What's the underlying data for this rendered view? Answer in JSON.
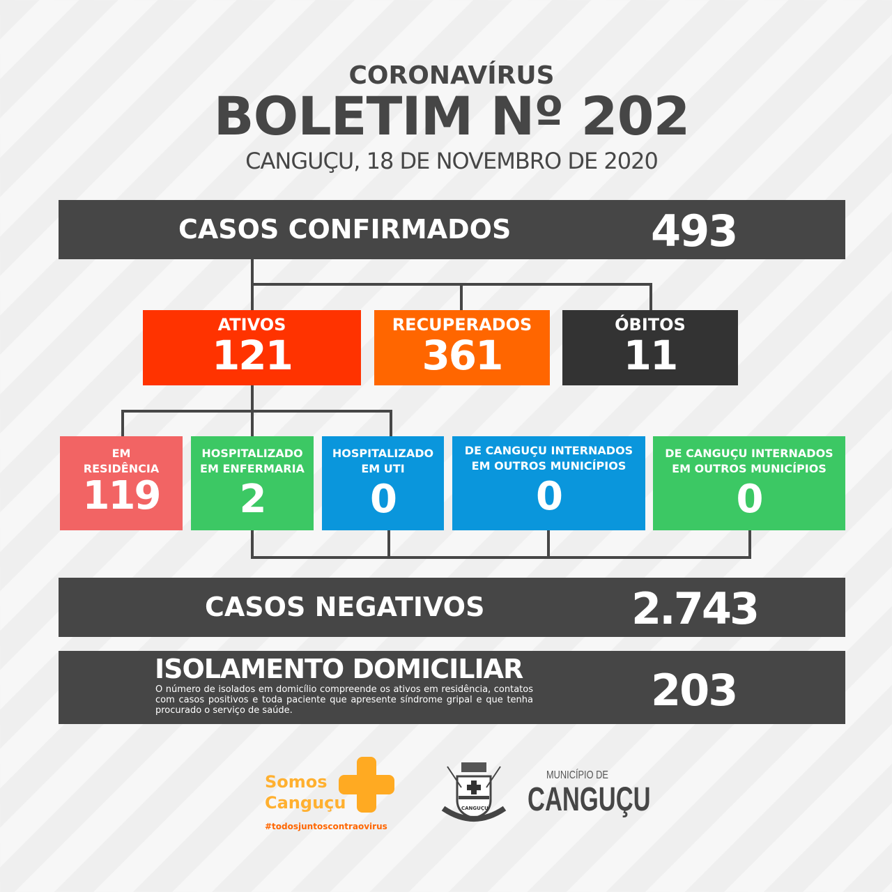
{
  "header": {
    "kicker": "CORONAVÍRUS",
    "title": "BOLETIM Nº 202",
    "date": "CANGUÇU, 18 DE NOVEMBRO DE 2020"
  },
  "confirmados": {
    "label": "CASOS CONFIRMADOS",
    "value": "493"
  },
  "status": [
    {
      "label": "ATIVOS",
      "value": "121",
      "color": "#ff3300"
    },
    {
      "label": "RECUPERADOS",
      "value": "361",
      "color": "#ff6600"
    },
    {
      "label": "ÓBITOS",
      "value": "11",
      "color": "#333333"
    }
  ],
  "ativos_detalhe": [
    {
      "label": "EM RESIDÊNCIA",
      "value": "119",
      "color": "#f26464"
    },
    {
      "label": "HOSPITALIZADO EM ENFERMARIA",
      "value": "2",
      "color": "#3cc864"
    },
    {
      "label": "HOSPITALIZADO EM UTI",
      "value": "0",
      "color": "#0a96dc"
    },
    {
      "label": "DE CANGUÇU INTERNADOS EM OUTROS MUNICÍPIOS",
      "value": "0",
      "color": "#0a96dc"
    },
    {
      "label": "DE CANGUÇU INTERNADOS EM OUTROS MUNICÍPIOS",
      "value": "0",
      "color": "#3cc864"
    }
  ],
  "negativos": {
    "label": "CASOS NEGATIVOS",
    "value": "2.743"
  },
  "isolamento": {
    "label": "ISOLAMENTO DOMICILIAR",
    "description": "O número de isolados em domicílio compreende os ativos em residência, contatos com casos positivos e toda paciente que apresente síndrome gripal e que tenha procurado o serviço de saúde.",
    "value": "203"
  },
  "footer": {
    "campaign_line1": "Somos",
    "campaign_line2": "Canguçu",
    "hashtag": "#todosjuntoscontraovirus",
    "municipio_small": "MUNICÍPIO DE",
    "municipio_big": "CANGUÇU",
    "crest_text": "CANGUÇU"
  }
}
